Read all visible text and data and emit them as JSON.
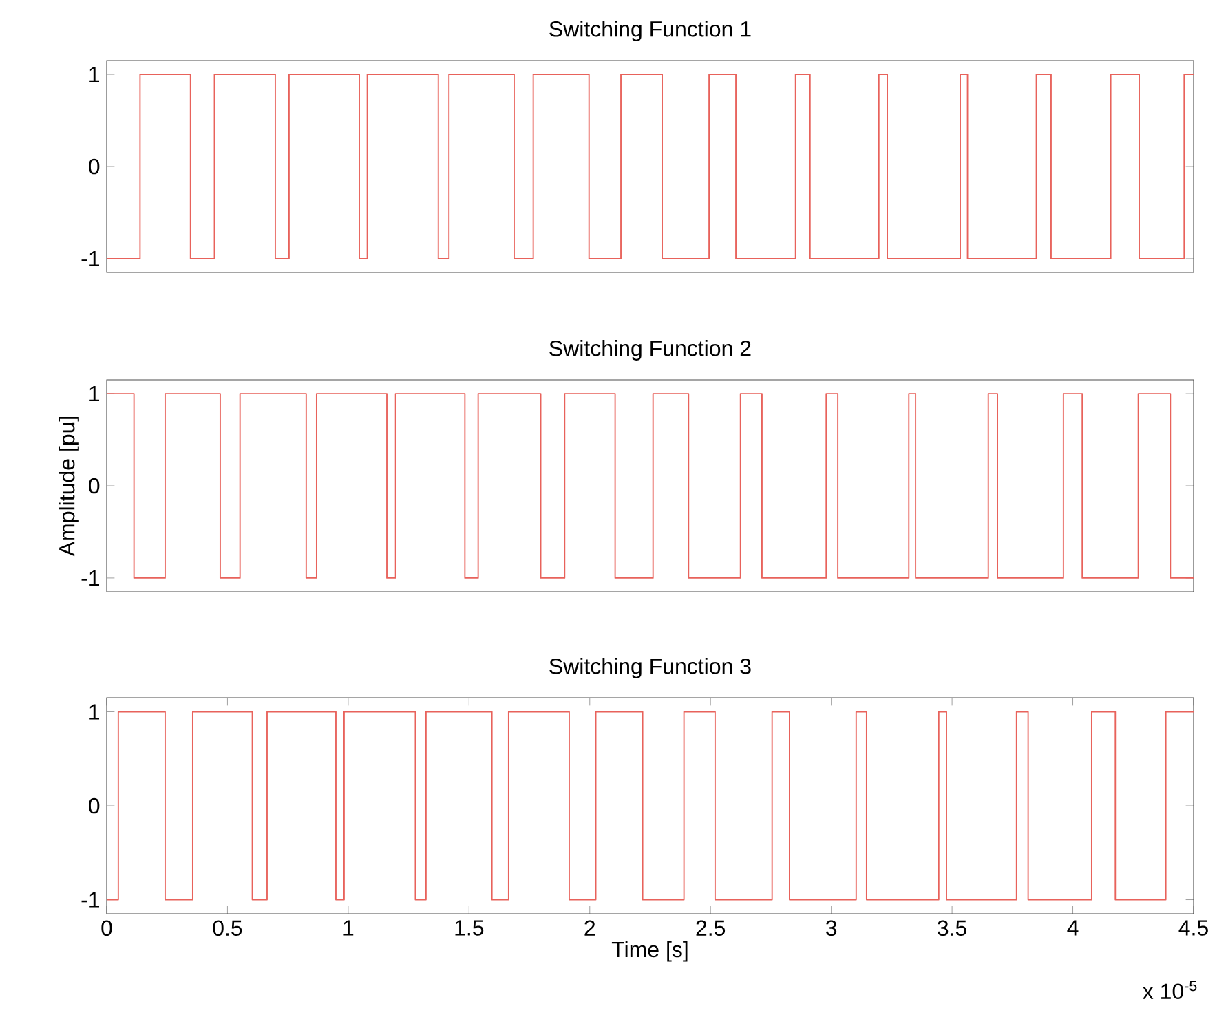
{
  "chart_data": [
    {
      "type": "step",
      "title": "Switching Function 1",
      "xlim": [
        0,
        4.5
      ],
      "ylim": [
        -1.15,
        1.15
      ],
      "yticks": [
        -1,
        0,
        1
      ],
      "tick_labels": "y",
      "grid": false,
      "series": [
        {
          "color": "#e8625b",
          "x": [
            0,
            0.138,
            0.347,
            0.446,
            0.698,
            0.755,
            1.046,
            1.079,
            1.373,
            1.417,
            1.687,
            1.766,
            1.997,
            2.129,
            2.3,
            2.494,
            2.605,
            2.852,
            2.912,
            3.197,
            3.232,
            3.534,
            3.564,
            3.849,
            3.91,
            4.157,
            4.275,
            4.461,
            4.5
          ],
          "values": [
            -1,
            1,
            -1,
            1,
            -1,
            1,
            -1,
            1,
            -1,
            1,
            -1,
            1,
            -1,
            1,
            -1,
            1,
            -1,
            1,
            -1,
            1,
            -1,
            1,
            -1,
            1,
            -1,
            1,
            -1,
            1,
            1
          ]
        }
      ]
    },
    {
      "type": "step",
      "title": "Switching Function 2",
      "ylabel": "Amplitude [pu]",
      "xlim": [
        0,
        4.5
      ],
      "ylim": [
        -1.15,
        1.15
      ],
      "yticks": [
        -1,
        0,
        1
      ],
      "tick_labels": "y",
      "grid": false,
      "series": [
        {
          "color": "#e8625b",
          "x": [
            0,
            0.113,
            0.242,
            0.47,
            0.552,
            0.826,
            0.869,
            1.16,
            1.196,
            1.483,
            1.538,
            1.797,
            1.896,
            2.105,
            2.262,
            2.409,
            2.624,
            2.713,
            2.979,
            3.027,
            3.321,
            3.349,
            3.65,
            3.688,
            3.961,
            4.039,
            4.271,
            4.404,
            4.5
          ],
          "values": [
            1,
            -1,
            1,
            -1,
            1,
            -1,
            1,
            -1,
            1,
            -1,
            1,
            -1,
            1,
            -1,
            1,
            -1,
            1,
            -1,
            1,
            -1,
            1,
            -1,
            1,
            -1,
            1,
            -1,
            1,
            -1,
            -1
          ]
        }
      ]
    },
    {
      "type": "step",
      "title": "Switching Function 3",
      "xlabel": "Time [s]",
      "annotations": [
        "x 10$^{-5}$"
      ],
      "xlim": [
        0,
        4.5
      ],
      "xticks": [
        0,
        0.5,
        1,
        1.5,
        2,
        2.5,
        3,
        3.5,
        4,
        4.5
      ],
      "ylim": [
        -1.15,
        1.15
      ],
      "yticks": [
        -1,
        0,
        1
      ],
      "grid": false,
      "series": [
        {
          "color": "#e8625b",
          "x": [
            0,
            0.048,
            0.242,
            0.356,
            0.603,
            0.664,
            0.949,
            0.983,
            1.278,
            1.322,
            1.595,
            1.664,
            1.915,
            2.025,
            2.219,
            2.39,
            2.519,
            2.755,
            2.827,
            3.103,
            3.146,
            3.445,
            3.477,
            3.767,
            3.815,
            4.078,
            4.176,
            4.385,
            4.5
          ],
          "values": [
            -1,
            1,
            -1,
            1,
            -1,
            1,
            -1,
            1,
            -1,
            1,
            -1,
            1,
            -1,
            1,
            -1,
            1,
            -1,
            1,
            -1,
            1,
            -1,
            1,
            -1,
            1,
            -1,
            1,
            -1,
            1,
            1
          ]
        }
      ]
    }
  ]
}
